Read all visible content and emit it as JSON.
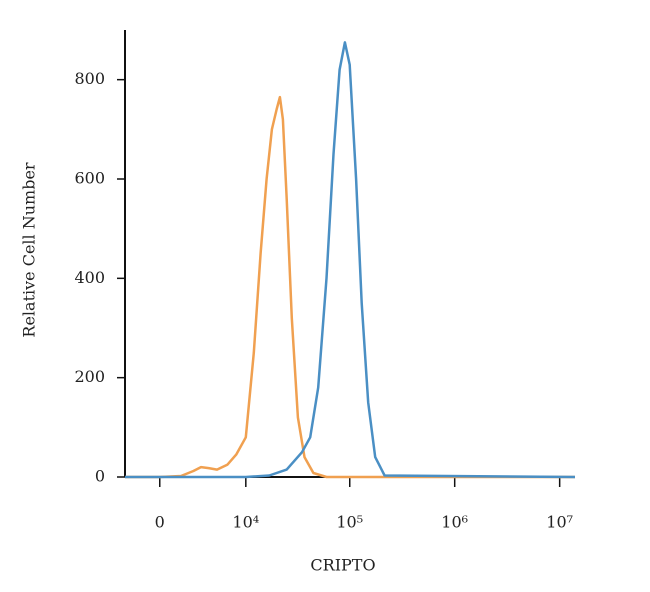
{
  "chart_data": {
    "type": "line",
    "x_label": "CRIPTO",
    "y_label": "Relative Cell Number",
    "xscale": "asinh",
    "xlim": [
      -2600,
      14000000
    ],
    "xticks": [
      0,
      {
        "value": 10000,
        "label": "10⁴"
      },
      {
        "value": 100000,
        "label": "10⁵"
      },
      {
        "value": 1000000,
        "label": "10⁶"
      },
      {
        "value": 10000000,
        "label": "10⁷"
      }
    ],
    "ylim": [
      0,
      900
    ],
    "yticks": [
      0,
      200,
      400,
      600,
      800
    ],
    "series": [
      {
        "color": "#f0a050",
        "x": [
          -2600,
          0,
          1500,
          2500,
          3200,
          4000,
          5000,
          6500,
          8000,
          10000,
          12000,
          14000,
          16000,
          18000,
          20000,
          21500,
          23000,
          25000,
          28000,
          32000,
          37000,
          45000,
          60000,
          14000000
        ],
        "values": [
          0,
          0,
          2,
          12,
          20,
          18,
          15,
          25,
          45,
          80,
          250,
          450,
          600,
          700,
          740,
          765,
          720,
          560,
          320,
          120,
          40,
          8,
          0,
          0
        ]
      },
      {
        "color": "#4a8fc4",
        "x": [
          -2600,
          0,
          10000,
          17000,
          25000,
          35000,
          42000,
          50000,
          60000,
          70000,
          80000,
          90000,
          100000,
          115000,
          130000,
          150000,
          175000,
          215000,
          14000000
        ],
        "values": [
          0,
          0,
          0,
          3,
          15,
          50,
          80,
          180,
          400,
          650,
          820,
          875,
          830,
          600,
          350,
          150,
          40,
          3,
          0
        ]
      }
    ]
  }
}
